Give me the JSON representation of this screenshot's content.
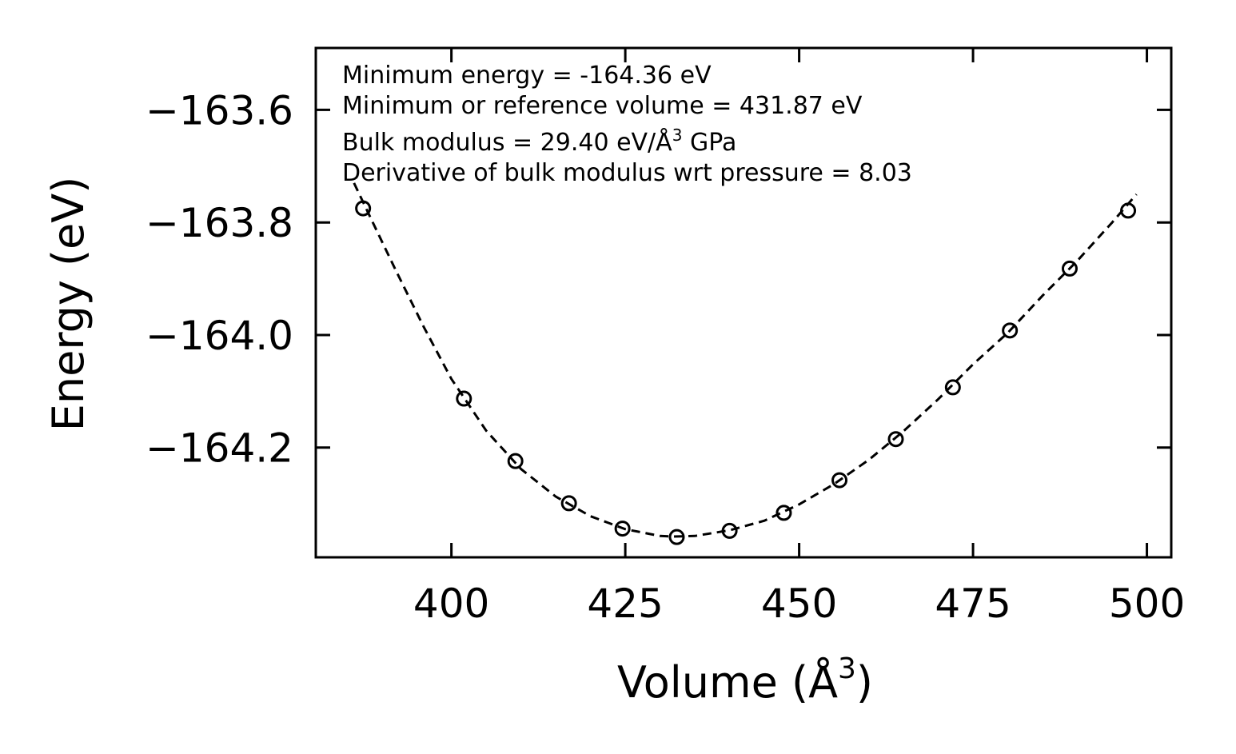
{
  "chart_data": {
    "type": "scatter",
    "title": "",
    "xlabel": "Volume (Å",
    "xlabel_sup": "3",
    "xlabel_end": ")",
    "ylabel": "Energy (eV)",
    "xlim": [
      380.5,
      503.5
    ],
    "ylim": [
      -164.395,
      -163.49
    ],
    "x_ticks": [
      400,
      425,
      450,
      475,
      500
    ],
    "x_tick_labels": [
      "400",
      "425",
      "450",
      "475",
      "500"
    ],
    "y_ticks": [
      -163.6,
      -163.8,
      -164.0,
      -164.2
    ],
    "y_tick_labels": [
      "−163.6",
      "−163.8",
      "−164.0",
      "−164.2"
    ],
    "grid": false,
    "series": [
      {
        "name": "data",
        "style": "open circle markers",
        "x": [
          387.3,
          401.8,
          409.2,
          416.9,
          424.6,
          432.4,
          440.0,
          447.8,
          455.8,
          463.9,
          472.1,
          480.3,
          488.9,
          497.3
        ],
        "y": [
          -163.775,
          -164.113,
          -164.224,
          -164.299,
          -164.344,
          -164.359,
          -164.348,
          -164.316,
          -164.258,
          -164.185,
          -164.093,
          -163.992,
          -163.882,
          -163.779
        ]
      },
      {
        "name": "fit",
        "style": "dashed line",
        "x": [
          386.0,
          388.5,
          392.0,
          396.0,
          400.0,
          405.0,
          410.0,
          415.0,
          420.0,
          425.0,
          430.0,
          432.0,
          435.0,
          440.0,
          445.0,
          450.0,
          455.0,
          460.0,
          465.0,
          470.0,
          475.0,
          480.0,
          485.0,
          490.0,
          495.0,
          498.5
        ],
        "y": [
          -163.73,
          -163.795,
          -163.885,
          -163.985,
          -164.078,
          -164.17,
          -164.238,
          -164.287,
          -164.322,
          -164.345,
          -164.357,
          -164.358,
          -164.357,
          -164.347,
          -164.33,
          -164.301,
          -164.265,
          -164.222,
          -164.171,
          -164.114,
          -164.052,
          -163.996,
          -163.93,
          -163.868,
          -163.8,
          -163.75
        ]
      }
    ],
    "annotations": {
      "line1": "Minimum energy = -164.36 eV",
      "line2": "Minimum or reference volume = 431.87 eV",
      "line3_pre": "Bulk modulus = 29.40 eV/Å",
      "line3_sup": "3",
      "line3_post": " GPa",
      "line4": "Derivative of bulk modulus wrt pressure = 8.03"
    }
  }
}
